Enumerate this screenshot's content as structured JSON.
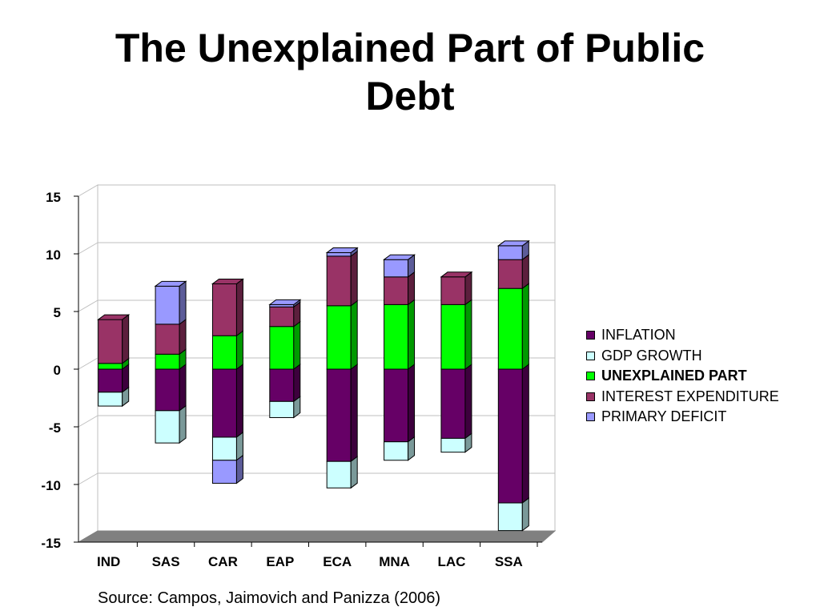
{
  "title_lines": [
    "The Unexplained Part of Public",
    "Debt"
  ],
  "source": "Source: Campos, Jaimovich and Panizza (2006)",
  "chart_data": {
    "type": "bar",
    "stacked": true,
    "three_d": true,
    "categories": [
      "IND",
      "SAS",
      "CAR",
      "EAP",
      "ECA",
      "MNA",
      "LAC",
      "SSA"
    ],
    "ylim": [
      -15,
      15
    ],
    "yticks": [
      15,
      10,
      5,
      0,
      -5,
      -10,
      -15
    ],
    "grid": true,
    "legend_position": "right",
    "series": [
      {
        "name": "INFLATION",
        "color": "#660066",
        "bold": false,
        "values": [
          -2.0,
          -3.6,
          -5.9,
          -2.8,
          -8.0,
          -6.3,
          -6.0,
          -11.6
        ]
      },
      {
        "name": "GDP GROWTH",
        "color": "#ccffff",
        "bold": false,
        "values": [
          -1.2,
          -2.8,
          -2.0,
          -1.4,
          -2.3,
          -1.6,
          -1.2,
          -2.4
        ]
      },
      {
        "name": "UNEXPLAINED PART",
        "color": "#00ff00",
        "bold": true,
        "values": [
          0.5,
          1.3,
          2.9,
          3.7,
          5.5,
          5.6,
          5.6,
          7.0
        ]
      },
      {
        "name": "INTEREST EXPENDITURE",
        "color": "#993366",
        "bold": false,
        "values": [
          3.8,
          2.6,
          4.5,
          1.7,
          4.3,
          2.4,
          2.4,
          2.5
        ]
      },
      {
        "name": "PRIMARY DEFICIT",
        "color": "#9999ff",
        "bold": false,
        "values": [
          0.0,
          3.3,
          -2.0,
          0.2,
          0.3,
          1.5,
          0.0,
          1.2
        ]
      }
    ]
  }
}
